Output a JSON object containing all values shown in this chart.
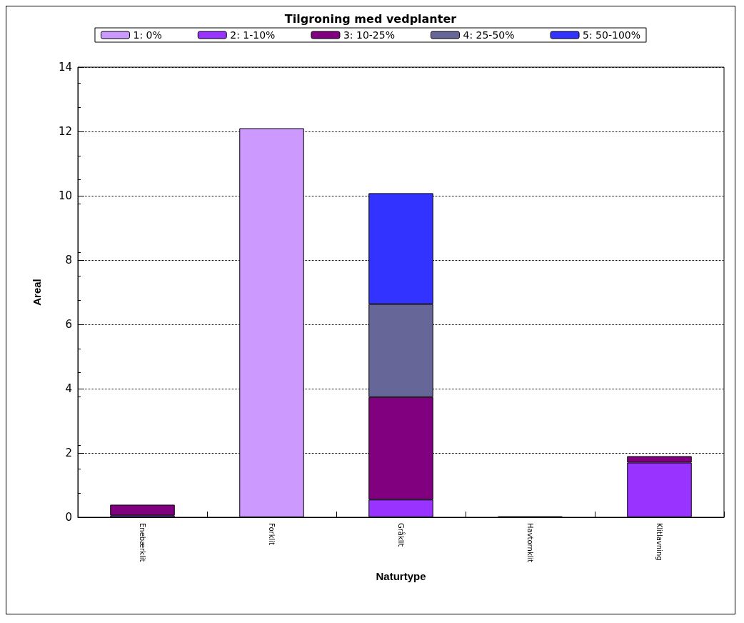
{
  "chart_data": {
    "type": "bar",
    "title": "Tilgroning med vedplanter",
    "xlabel": "Naturtype",
    "ylabel": "Areal",
    "categories": [
      "Enebærklit",
      "Forklit",
      "Gråklit",
      "Havtornklit",
      "Klitlavning"
    ],
    "stacked": true,
    "series": [
      {
        "name": "1: 0%",
        "color": "#cc99ff",
        "values": [
          null,
          12.1,
          null,
          null,
          null
        ]
      },
      {
        "name": "2: 1-10%",
        "color": "#9933ff",
        "values": [
          0.06,
          null,
          0.55,
          null,
          1.7
        ]
      },
      {
        "name": "3: 10-25%",
        "color": "#800080",
        "values": [
          0.33,
          null,
          3.19,
          0.03,
          0.2
        ]
      },
      {
        "name": "4: 25-50%",
        "color": "#666699",
        "values": [
          null,
          null,
          2.89,
          null,
          null
        ]
      },
      {
        "name": "5: 50-100%",
        "color": "#3333ff",
        "values": [
          null,
          null,
          3.45,
          null,
          null
        ]
      }
    ],
    "ylim": [
      0,
      14
    ],
    "yticks": [
      0,
      2,
      4,
      6,
      8,
      10,
      12,
      14
    ],
    "grid": "y",
    "legend": "top"
  }
}
